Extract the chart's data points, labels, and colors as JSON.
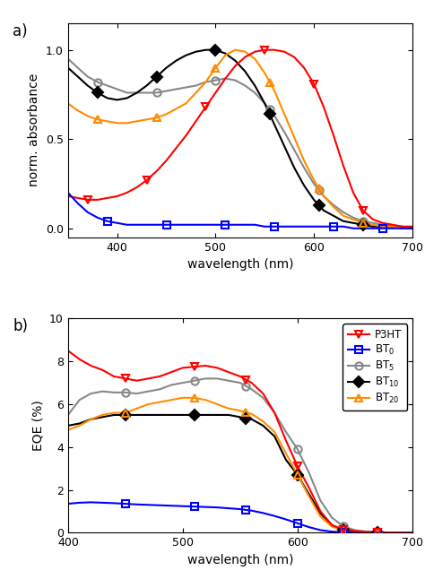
{
  "panel_a": {
    "ylabel": "norm. absorbance",
    "xlabel": "wavelength (nm)",
    "xlim": [
      350,
      700
    ],
    "ylim": [
      -0.05,
      1.15
    ],
    "yticks": [
      0.0,
      0.5,
      1.0
    ],
    "xticks": [
      400,
      500,
      600,
      700
    ],
    "series": {
      "P3HT": {
        "x": [
          350,
          360,
          370,
          380,
          390,
          400,
          410,
          420,
          430,
          440,
          450,
          460,
          470,
          480,
          490,
          500,
          510,
          520,
          530,
          540,
          550,
          560,
          570,
          580,
          590,
          600,
          610,
          620,
          630,
          640,
          650,
          660,
          670,
          680,
          690,
          700
        ],
        "y": [
          0.18,
          0.17,
          0.16,
          0.16,
          0.17,
          0.18,
          0.2,
          0.23,
          0.27,
          0.32,
          0.38,
          0.45,
          0.52,
          0.6,
          0.68,
          0.76,
          0.84,
          0.91,
          0.96,
          0.99,
          1.0,
          1.0,
          0.99,
          0.96,
          0.9,
          0.81,
          0.68,
          0.52,
          0.35,
          0.2,
          0.1,
          0.05,
          0.03,
          0.02,
          0.01,
          0.01
        ],
        "color": "#ff0000",
        "marker": "v",
        "marker_x": [
          370,
          430,
          490,
          550,
          600,
          650
        ]
      },
      "BT0": {
        "x": [
          350,
          360,
          370,
          380,
          390,
          400,
          410,
          420,
          430,
          440,
          450,
          460,
          470,
          480,
          490,
          500,
          510,
          520,
          530,
          540,
          550,
          560,
          570,
          580,
          590,
          600,
          610,
          620,
          630,
          640,
          650,
          660,
          670,
          680,
          690,
          700
        ],
        "y": [
          0.2,
          0.14,
          0.09,
          0.06,
          0.04,
          0.03,
          0.02,
          0.02,
          0.02,
          0.02,
          0.02,
          0.02,
          0.02,
          0.02,
          0.02,
          0.02,
          0.02,
          0.02,
          0.02,
          0.02,
          0.01,
          0.01,
          0.01,
          0.01,
          0.01,
          0.01,
          0.01,
          0.01,
          0.01,
          0.0,
          0.0,
          0.0,
          0.0,
          0.0,
          0.0,
          0.0
        ],
        "color": "#0000ff",
        "marker": "s",
        "marker_x": [
          390,
          450,
          510,
          560,
          620,
          670
        ]
      },
      "BT5": {
        "x": [
          350,
          360,
          370,
          380,
          390,
          400,
          410,
          420,
          430,
          440,
          450,
          460,
          470,
          480,
          490,
          500,
          510,
          520,
          530,
          540,
          550,
          560,
          570,
          580,
          590,
          600,
          610,
          620,
          630,
          640,
          650,
          660,
          670,
          680,
          690,
          700
        ],
        "y": [
          0.95,
          0.9,
          0.85,
          0.82,
          0.8,
          0.78,
          0.76,
          0.76,
          0.76,
          0.76,
          0.77,
          0.78,
          0.79,
          0.8,
          0.82,
          0.83,
          0.84,
          0.83,
          0.8,
          0.76,
          0.7,
          0.63,
          0.54,
          0.44,
          0.34,
          0.25,
          0.18,
          0.13,
          0.09,
          0.06,
          0.04,
          0.03,
          0.02,
          0.01,
          0.01,
          0.0
        ],
        "color": "#888888",
        "marker": "o",
        "marker_x": [
          380,
          440,
          500,
          555,
          605,
          650
        ]
      },
      "BT10": {
        "x": [
          350,
          360,
          370,
          380,
          390,
          400,
          410,
          420,
          430,
          440,
          450,
          460,
          470,
          480,
          490,
          500,
          510,
          520,
          530,
          540,
          550,
          560,
          570,
          580,
          590,
          600,
          610,
          620,
          630,
          640,
          650,
          660,
          670,
          680,
          690,
          700
        ],
        "y": [
          0.9,
          0.85,
          0.8,
          0.76,
          0.73,
          0.72,
          0.73,
          0.76,
          0.8,
          0.85,
          0.9,
          0.94,
          0.97,
          0.99,
          1.0,
          1.0,
          0.98,
          0.94,
          0.88,
          0.8,
          0.7,
          0.58,
          0.46,
          0.34,
          0.24,
          0.16,
          0.1,
          0.07,
          0.04,
          0.03,
          0.02,
          0.01,
          0.01,
          0.01,
          0.0,
          0.0
        ],
        "color": "#000000",
        "marker": "D",
        "marker_x": [
          380,
          440,
          500,
          555,
          605,
          650
        ]
      },
      "BT20": {
        "x": [
          350,
          360,
          370,
          380,
          390,
          400,
          410,
          420,
          430,
          440,
          450,
          460,
          470,
          480,
          490,
          500,
          510,
          520,
          530,
          540,
          550,
          560,
          570,
          580,
          590,
          600,
          610,
          620,
          630,
          640,
          650,
          660,
          670,
          680,
          690,
          700
        ],
        "y": [
          0.7,
          0.66,
          0.63,
          0.61,
          0.6,
          0.59,
          0.59,
          0.6,
          0.61,
          0.62,
          0.64,
          0.67,
          0.7,
          0.76,
          0.82,
          0.9,
          0.97,
          1.0,
          0.99,
          0.95,
          0.87,
          0.77,
          0.64,
          0.51,
          0.38,
          0.27,
          0.18,
          0.12,
          0.07,
          0.05,
          0.03,
          0.02,
          0.01,
          0.01,
          0.0,
          0.0
        ],
        "color": "#ff8c00",
        "marker": "^",
        "marker_x": [
          380,
          440,
          500,
          555,
          605,
          650
        ]
      }
    }
  },
  "panel_b": {
    "ylabel": "EQE (%)",
    "xlabel": "wavelength (nm)",
    "xlim": [
      400,
      700
    ],
    "ylim": [
      0,
      10
    ],
    "yticks": [
      0,
      2,
      4,
      6,
      8,
      10
    ],
    "xticks": [
      400,
      500,
      600,
      700
    ],
    "series": {
      "P3HT": {
        "x": [
          400,
          410,
          420,
          430,
          440,
          450,
          460,
          470,
          480,
          490,
          500,
          510,
          520,
          530,
          540,
          550,
          560,
          570,
          580,
          590,
          600,
          610,
          620,
          630,
          640,
          650,
          660,
          670,
          680,
          690,
          700
        ],
        "y": [
          8.5,
          8.1,
          7.8,
          7.6,
          7.3,
          7.2,
          7.1,
          7.2,
          7.3,
          7.5,
          7.7,
          7.75,
          7.8,
          7.7,
          7.5,
          7.3,
          7.0,
          6.5,
          5.6,
          4.3,
          3.1,
          2.1,
          1.0,
          0.35,
          0.15,
          0.08,
          0.04,
          0.02,
          0.01,
          0.01,
          0.0
        ],
        "color": "#ff0000",
        "marker": "v",
        "marker_x": [
          450,
          510,
          555,
          600,
          640,
          670
        ]
      },
      "BT0": {
        "x": [
          400,
          410,
          420,
          430,
          440,
          450,
          460,
          470,
          480,
          490,
          500,
          510,
          520,
          530,
          540,
          550,
          560,
          570,
          580,
          590,
          600,
          610,
          620,
          630,
          640,
          650,
          660,
          670,
          680,
          690,
          700
        ],
        "y": [
          1.35,
          1.4,
          1.42,
          1.4,
          1.38,
          1.35,
          1.32,
          1.3,
          1.28,
          1.26,
          1.24,
          1.22,
          1.2,
          1.18,
          1.14,
          1.1,
          1.03,
          0.92,
          0.78,
          0.62,
          0.44,
          0.26,
          0.12,
          0.05,
          0.02,
          0.01,
          0.0,
          0.0,
          0.0,
          0.0,
          0.0
        ],
        "color": "#0000ff",
        "marker": "s",
        "marker_x": [
          450,
          510,
          555,
          600,
          640,
          670
        ]
      },
      "BT5": {
        "x": [
          400,
          410,
          420,
          430,
          440,
          450,
          460,
          470,
          480,
          490,
          500,
          510,
          520,
          530,
          540,
          550,
          560,
          570,
          580,
          590,
          600,
          610,
          620,
          630,
          640,
          650,
          660,
          670,
          680,
          690,
          700
        ],
        "y": [
          5.5,
          6.2,
          6.5,
          6.6,
          6.55,
          6.55,
          6.5,
          6.6,
          6.7,
          6.9,
          7.0,
          7.1,
          7.2,
          7.2,
          7.1,
          7.0,
          6.7,
          6.3,
          5.6,
          4.7,
          3.9,
          2.8,
          1.5,
          0.7,
          0.3,
          0.12,
          0.05,
          0.02,
          0.01,
          0.0,
          0.0
        ],
        "color": "#888888",
        "marker": "o",
        "marker_x": [
          450,
          510,
          555,
          600,
          640,
          670
        ]
      },
      "BT10": {
        "x": [
          400,
          410,
          420,
          430,
          440,
          450,
          460,
          470,
          480,
          490,
          500,
          510,
          520,
          530,
          540,
          550,
          560,
          570,
          580,
          590,
          600,
          610,
          620,
          630,
          640,
          650,
          660,
          670,
          680,
          690,
          700
        ],
        "y": [
          5.0,
          5.1,
          5.3,
          5.4,
          5.5,
          5.5,
          5.5,
          5.5,
          5.5,
          5.5,
          5.5,
          5.5,
          5.5,
          5.5,
          5.5,
          5.4,
          5.3,
          5.0,
          4.5,
          3.4,
          2.7,
          1.8,
          0.9,
          0.35,
          0.12,
          0.05,
          0.02,
          0.01,
          0.0,
          0.0,
          0.0
        ],
        "color": "#000000",
        "marker": "D",
        "marker_x": [
          450,
          510,
          555,
          600,
          640,
          670
        ]
      },
      "BT20": {
        "x": [
          400,
          410,
          420,
          430,
          440,
          450,
          460,
          470,
          480,
          490,
          500,
          510,
          520,
          530,
          540,
          550,
          560,
          570,
          580,
          590,
          600,
          610,
          620,
          630,
          640,
          650,
          660,
          670,
          680,
          690,
          700
        ],
        "y": [
          4.8,
          5.0,
          5.3,
          5.5,
          5.6,
          5.6,
          5.8,
          6.0,
          6.1,
          6.2,
          6.3,
          6.3,
          6.2,
          6.0,
          5.8,
          5.7,
          5.55,
          5.2,
          4.7,
          3.7,
          2.7,
          1.7,
          0.75,
          0.28,
          0.1,
          0.04,
          0.02,
          0.01,
          0.0,
          0.0,
          0.0
        ],
        "color": "#ff8c00",
        "marker": "^",
        "marker_x": [
          450,
          510,
          555,
          600,
          640,
          670
        ]
      }
    }
  },
  "legend": [
    {
      "label": "P3HT",
      "color": "#ff0000",
      "marker": "v"
    },
    {
      "label": "BT$_0$",
      "color": "#0000ff",
      "marker": "s"
    },
    {
      "label": "BT$_5$",
      "color": "#888888",
      "marker": "o"
    },
    {
      "label": "BT$_{10}$",
      "color": "#000000",
      "marker": "D"
    },
    {
      "label": "BT$_{20}$",
      "color": "#ff8c00",
      "marker": "^"
    }
  ]
}
